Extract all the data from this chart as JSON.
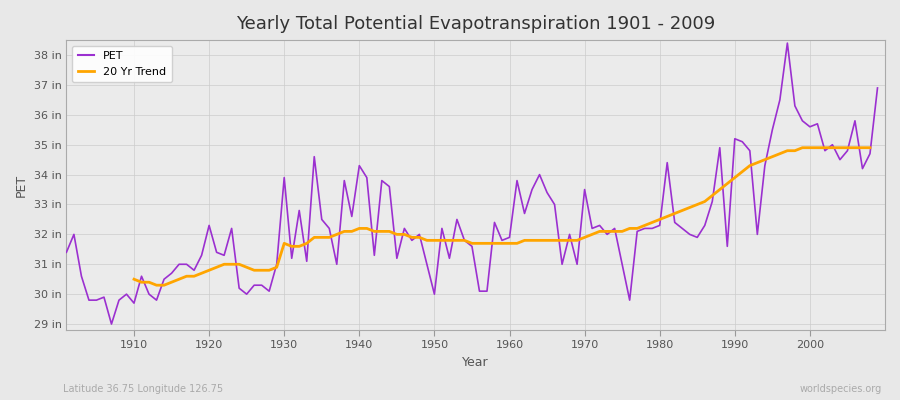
{
  "title": "Yearly Total Potential Evapotranspiration 1901 - 2009",
  "xlabel": "Year",
  "ylabel": "PET",
  "subtitle_left": "Latitude 36.75 Longitude 126.75",
  "subtitle_right": "worldspecies.org",
  "background_color": "#e8e8e8",
  "plot_bg_color": "#ebebeb",
  "pet_color": "#9b30d0",
  "trend_color": "#ffa500",
  "ylim_min": 28.8,
  "ylim_max": 38.5,
  "yticks": [
    29,
    30,
    31,
    32,
    33,
    34,
    35,
    36,
    37,
    38
  ],
  "ytick_labels": [
    "29 in",
    "30 in",
    "31 in",
    "32 in",
    "33 in",
    "34 in",
    "35 in",
    "36 in",
    "37 in",
    "38 in"
  ],
  "years": [
    1901,
    1902,
    1903,
    1904,
    1905,
    1906,
    1907,
    1908,
    1909,
    1910,
    1911,
    1912,
    1913,
    1914,
    1915,
    1916,
    1917,
    1918,
    1919,
    1920,
    1921,
    1922,
    1923,
    1924,
    1925,
    1926,
    1927,
    1928,
    1929,
    1930,
    1931,
    1932,
    1933,
    1934,
    1935,
    1936,
    1937,
    1938,
    1939,
    1940,
    1941,
    1942,
    1943,
    1944,
    1945,
    1946,
    1947,
    1948,
    1949,
    1950,
    1951,
    1952,
    1953,
    1954,
    1955,
    1956,
    1957,
    1958,
    1959,
    1960,
    1961,
    1962,
    1963,
    1964,
    1965,
    1966,
    1967,
    1968,
    1969,
    1970,
    1971,
    1972,
    1973,
    1974,
    1975,
    1976,
    1977,
    1978,
    1979,
    1980,
    1981,
    1982,
    1983,
    1984,
    1985,
    1986,
    1987,
    1988,
    1989,
    1990,
    1991,
    1992,
    1993,
    1994,
    1995,
    1996,
    1997,
    1998,
    1999,
    2000,
    2001,
    2002,
    2003,
    2004,
    2005,
    2006,
    2007,
    2008,
    2009
  ],
  "pet_values": [
    31.4,
    32.0,
    30.6,
    29.8,
    29.8,
    29.9,
    29.0,
    29.8,
    30.0,
    29.7,
    30.6,
    30.0,
    29.8,
    30.5,
    30.7,
    31.0,
    31.0,
    30.8,
    31.3,
    32.3,
    31.4,
    31.3,
    32.2,
    30.2,
    30.0,
    30.3,
    30.3,
    30.1,
    31.0,
    33.9,
    31.2,
    32.8,
    31.1,
    34.6,
    32.5,
    32.2,
    31.0,
    33.8,
    32.6,
    34.3,
    33.9,
    31.3,
    33.8,
    33.6,
    31.2,
    32.2,
    31.8,
    32.0,
    31.0,
    30.0,
    32.2,
    31.2,
    32.5,
    31.8,
    31.6,
    30.1,
    30.1,
    32.4,
    31.8,
    31.9,
    33.8,
    32.7,
    33.5,
    34.0,
    33.4,
    33.0,
    31.0,
    32.0,
    31.0,
    33.5,
    32.2,
    32.3,
    32.0,
    32.2,
    31.0,
    29.8,
    32.1,
    32.2,
    32.2,
    32.3,
    34.4,
    32.4,
    32.2,
    32.0,
    31.9,
    32.3,
    33.1,
    34.9,
    31.6,
    35.2,
    35.1,
    34.8,
    32.0,
    34.3,
    35.5,
    36.5,
    38.4,
    36.3,
    35.8,
    35.6,
    35.7,
    34.8,
    35.0,
    34.5,
    34.8,
    35.8,
    34.2,
    34.7,
    36.9
  ],
  "trend_values": [
    null,
    null,
    null,
    null,
    null,
    null,
    null,
    null,
    null,
    30.5,
    30.4,
    30.4,
    30.3,
    30.3,
    30.4,
    30.5,
    30.6,
    30.6,
    30.7,
    30.8,
    30.9,
    31.0,
    31.0,
    31.0,
    30.9,
    30.8,
    30.8,
    30.8,
    30.9,
    31.7,
    31.6,
    31.6,
    31.7,
    31.9,
    31.9,
    31.9,
    32.0,
    32.1,
    32.1,
    32.2,
    32.2,
    32.1,
    32.1,
    32.1,
    32.0,
    32.0,
    31.9,
    31.9,
    31.8,
    31.8,
    31.8,
    31.8,
    31.8,
    31.8,
    31.7,
    31.7,
    31.7,
    31.7,
    31.7,
    31.7,
    31.7,
    31.8,
    31.8,
    31.8,
    31.8,
    31.8,
    31.8,
    31.8,
    31.8,
    31.9,
    32.0,
    32.1,
    32.1,
    32.1,
    32.1,
    32.2,
    32.2,
    32.3,
    32.4,
    32.5,
    32.6,
    32.7,
    32.8,
    32.9,
    33.0,
    33.1,
    33.3,
    33.5,
    33.7,
    33.9,
    34.1,
    34.3,
    34.4,
    34.5,
    34.6,
    34.7,
    34.8,
    34.8,
    34.9,
    34.9,
    34.9,
    34.9,
    34.9,
    34.9,
    34.9,
    34.9,
    34.9,
    34.9
  ]
}
